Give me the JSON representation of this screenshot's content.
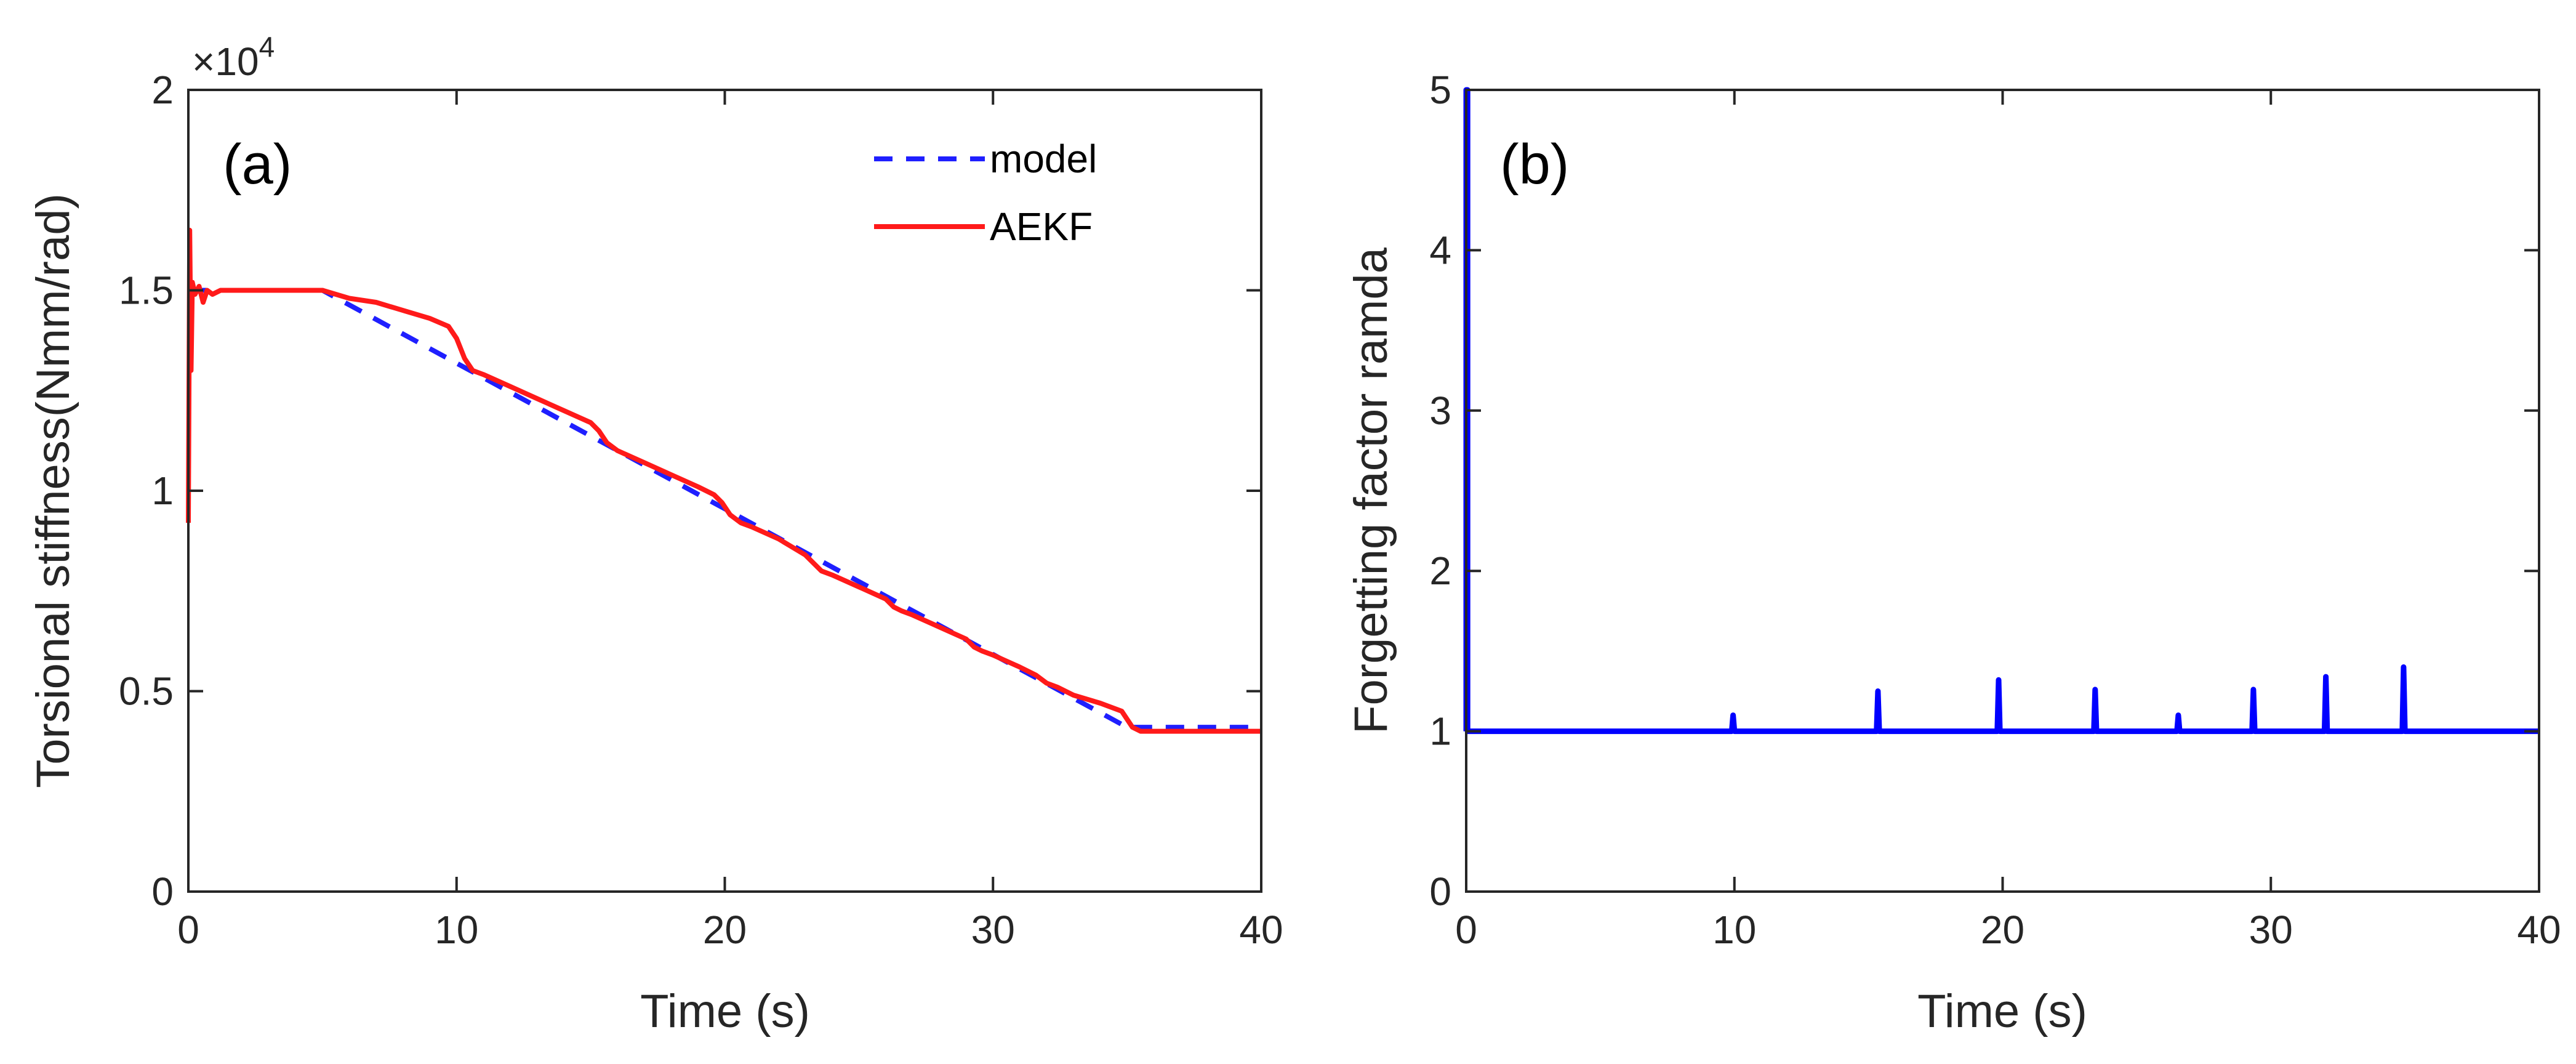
{
  "chart_data": [
    {
      "panel_label": "(a)",
      "type": "line",
      "xlabel": "Time (s)",
      "ylabel": "Torsional stiffness(Nmm/rad)",
      "y_exponent_label": "×10",
      "y_exponent_power": "4",
      "xlim": [
        0,
        40
      ],
      "ylim": [
        0,
        2
      ],
      "xticks": [
        0,
        10,
        20,
        30,
        40
      ],
      "xtick_labels": [
        "0",
        "10",
        "20",
        "30",
        "40"
      ],
      "yticks": [
        0,
        0.5,
        1,
        1.5,
        2
      ],
      "ytick_labels": [
        "0",
        "0.5",
        "1",
        "1.5",
        "2"
      ],
      "legend_position": "top-right",
      "series": [
        {
          "name": "model",
          "color": "#1f1fff",
          "style": "dashed",
          "x": [
            0,
            5,
            35,
            40
          ],
          "y": [
            1.5,
            1.5,
            0.41,
            0.41
          ]
        },
        {
          "name": "AEKF",
          "color": "#ff1a1a",
          "style": "solid",
          "x": [
            0,
            0.05,
            0.1,
            0.15,
            0.25,
            0.4,
            0.55,
            0.7,
            0.9,
            1.2,
            2,
            3,
            4,
            5,
            6,
            7,
            8,
            9,
            9.7,
            10.0,
            10.3,
            10.6,
            11,
            12,
            13,
            14,
            15,
            15.3,
            15.6,
            16,
            17,
            18,
            19,
            19.6,
            19.9,
            20.2,
            20.6,
            21,
            22,
            23,
            23.3,
            23.6,
            24,
            25,
            26,
            26.3,
            26.6,
            27,
            28,
            29,
            29.3,
            29.6,
            30,
            31,
            31.6,
            32,
            32.4,
            33,
            34,
            34.8,
            35.2,
            35.5,
            36,
            37,
            38,
            39,
            40
          ],
          "y": [
            0.92,
            1.65,
            1.3,
            1.52,
            1.49,
            1.51,
            1.47,
            1.5,
            1.49,
            1.5,
            1.5,
            1.5,
            1.5,
            1.5,
            1.48,
            1.47,
            1.45,
            1.43,
            1.41,
            1.38,
            1.33,
            1.3,
            1.29,
            1.26,
            1.23,
            1.2,
            1.17,
            1.15,
            1.12,
            1.1,
            1.07,
            1.04,
            1.01,
            0.99,
            0.97,
            0.94,
            0.92,
            0.91,
            0.88,
            0.84,
            0.82,
            0.8,
            0.79,
            0.76,
            0.73,
            0.71,
            0.7,
            0.69,
            0.66,
            0.63,
            0.61,
            0.6,
            0.59,
            0.56,
            0.54,
            0.52,
            0.51,
            0.49,
            0.47,
            0.45,
            0.41,
            0.4,
            0.4,
            0.4,
            0.4,
            0.4,
            0.4
          ]
        }
      ]
    },
    {
      "panel_label": "(b)",
      "type": "line",
      "xlabel": "Time (s)",
      "ylabel": "Forgetting factor ramda",
      "xlim": [
        0,
        40
      ],
      "ylim": [
        0,
        5
      ],
      "xticks": [
        0,
        10,
        20,
        30,
        40
      ],
      "xtick_labels": [
        "0",
        "10",
        "20",
        "30",
        "40"
      ],
      "yticks": [
        0,
        1,
        2,
        3,
        4,
        5
      ],
      "ytick_labels": [
        "0",
        "1",
        "2",
        "3",
        "4",
        "5"
      ],
      "series": [
        {
          "name": "ramda",
          "color": "#0000ff",
          "style": "solid",
          "x": [
            0,
            0,
            0.05,
            0.05,
            9.9,
            9.95,
            10.0,
            15.3,
            15.35,
            15.4,
            19.8,
            19.85,
            19.9,
            23.4,
            23.45,
            23.5,
            26.5,
            26.55,
            26.6,
            29.3,
            29.35,
            29.4,
            32.0,
            32.05,
            32.1,
            34.9,
            34.95,
            35.0,
            40
          ],
          "y": [
            1,
            5,
            5,
            1,
            1,
            1.1,
            1,
            1,
            1.25,
            1,
            1,
            1.32,
            1,
            1,
            1.26,
            1,
            1,
            1.1,
            1,
            1,
            1.26,
            1,
            1,
            1.34,
            1,
            1,
            1.4,
            1,
            1
          ]
        }
      ]
    }
  ]
}
